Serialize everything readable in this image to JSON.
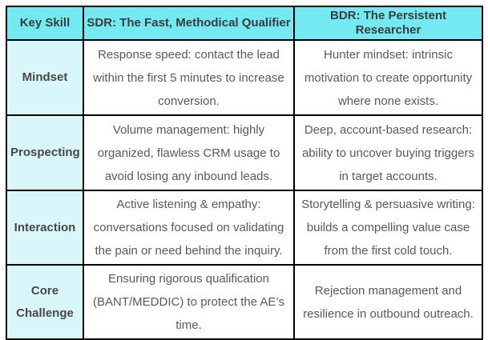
{
  "colors": {
    "header_bg": "#75e9f2",
    "label_bg": "#d9f7fb",
    "border": "#000000",
    "header_text": "#3c3c3c",
    "label_text": "#474747",
    "body_text": "#595959"
  },
  "table": {
    "headers": [
      "Key Skill",
      "SDR: The Fast, Methodical Qualifier",
      "BDR: The Persistent Researcher"
    ],
    "rows": [
      {
        "skill": "Mindset",
        "sdr": "Response speed: contact the lead within the first 5 minutes to increase conversion.",
        "bdr": "Hunter mindset: intrinsic motivation to create opportunity where none exists."
      },
      {
        "skill": "Prospecting",
        "sdr": "Volume management: highly organized, flawless CRM usage to avoid losing any inbound leads.",
        "bdr": "Deep, account-based research: ability to uncover buying triggers in target accounts."
      },
      {
        "skill": "Interaction",
        "sdr": "Active listening & empathy: conversations focused on validating the pain or need behind the inquiry.",
        "bdr": "Storytelling & persuasive writing: builds a compelling value case from the first cold touch."
      },
      {
        "skill": "Core Challenge",
        "sdr": "Ensuring rigorous qualification (BANT/MEDDIC) to protect the AE’s time.",
        "bdr": "Rejection management and resilience in outbound outreach."
      }
    ]
  }
}
